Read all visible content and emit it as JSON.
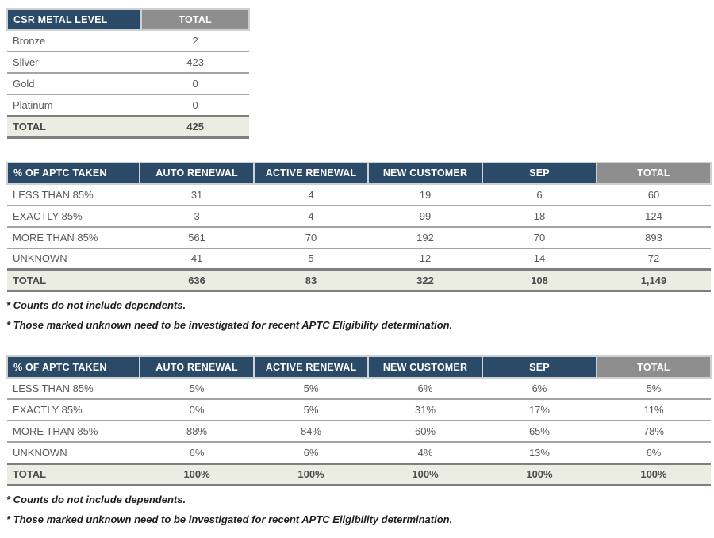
{
  "colors": {
    "header_blue": "#2b4a67",
    "header_gray": "#8e8e8e",
    "total_row_bg": "#ecede2",
    "body_text": "#595959",
    "header_text": "#ffffff",
    "row_border": "#a3a3a3",
    "total_border": "#7f7f7f"
  },
  "metal_table": {
    "header": [
      "CSR METAL LEVEL",
      "TOTAL"
    ],
    "rows": [
      [
        "Bronze",
        "2"
      ],
      [
        "Silver",
        "423"
      ],
      [
        "Gold",
        "0"
      ],
      [
        "Platinum",
        "0"
      ]
    ],
    "total_row": [
      "TOTAL",
      "425"
    ]
  },
  "counts_table": {
    "header": [
      "% OF APTC TAKEN",
      "AUTO RENEWAL",
      "ACTIVE RENEWAL",
      "NEW CUSTOMER",
      "SEP",
      "TOTAL"
    ],
    "rows": [
      [
        "LESS THAN 85%",
        "31",
        "4",
        "19",
        "6",
        "60"
      ],
      [
        "EXACTLY 85%",
        "3",
        "4",
        "99",
        "18",
        "124"
      ],
      [
        "MORE THAN 85%",
        "561",
        "70",
        "192",
        "70",
        "893"
      ],
      [
        "UNKNOWN",
        "41",
        "5",
        "12",
        "14",
        "72"
      ]
    ],
    "total_row": [
      "TOTAL",
      "636",
      "83",
      "322",
      "108",
      "1,149"
    ],
    "footnotes": [
      "* Counts do not include dependents.",
      "* Those marked unknown need to be investigated for recent APTC Eligibility determination."
    ]
  },
  "percent_table": {
    "header": [
      "% OF APTC TAKEN",
      "AUTO RENEWAL",
      "ACTIVE RENEWAL",
      "NEW CUSTOMER",
      "SEP",
      "TOTAL"
    ],
    "rows": [
      [
        "LESS THAN 85%",
        "5%",
        "5%",
        "6%",
        "6%",
        "5%"
      ],
      [
        "EXACTLY 85%",
        "0%",
        "5%",
        "31%",
        "17%",
        "11%"
      ],
      [
        "MORE THAN 85%",
        "88%",
        "84%",
        "60%",
        "65%",
        "78%"
      ],
      [
        "UNKNOWN",
        "6%",
        "6%",
        "4%",
        "13%",
        "6%"
      ]
    ],
    "total_row": [
      "TOTAL",
      "100%",
      "100%",
      "100%",
      "100%",
      "100%"
    ],
    "footnotes": [
      "* Counts do not include dependents.",
      "* Those marked unknown need to be investigated for recent APTC Eligibility determination."
    ]
  }
}
